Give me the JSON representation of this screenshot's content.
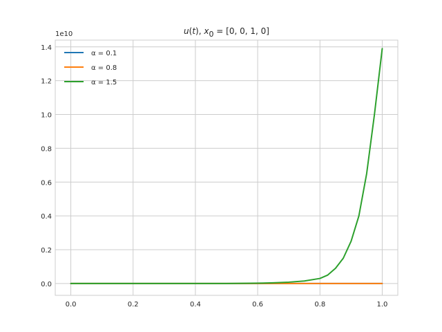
{
  "chart_data": {
    "type": "line",
    "title": {
      "func": "u",
      "arg": "t",
      "x0_symbol": "x",
      "x0_sub": "0",
      "x0_value": "[0, 0, 1, 0]"
    },
    "xlabel": "",
    "ylabel": "",
    "xlim": [
      -0.05,
      1.05
    ],
    "ylim": [
      -0.07,
      1.44
    ],
    "y_multiplier": "1e10",
    "x_ticks": [
      0.0,
      0.2,
      0.4,
      0.6,
      0.8,
      1.0
    ],
    "x_tick_labels": [
      "0.0",
      "0.2",
      "0.4",
      "0.6",
      "0.8",
      "1.0"
    ],
    "y_ticks": [
      0.0,
      0.2,
      0.4,
      0.6,
      0.8,
      1.0,
      1.2,
      1.4
    ],
    "y_tick_labels": [
      "0.0",
      "0.2",
      "0.4",
      "0.6",
      "0.8",
      "1.0",
      "1.2",
      "1.4"
    ],
    "grid": true,
    "legend_position": "top-left",
    "x": [
      0.0,
      0.1,
      0.2,
      0.3,
      0.4,
      0.5,
      0.55,
      0.6,
      0.65,
      0.7,
      0.75,
      0.8,
      0.825,
      0.85,
      0.875,
      0.9,
      0.925,
      0.95,
      0.975,
      1.0
    ],
    "series": [
      {
        "name": "α = 0.1",
        "color": "#1f77b4",
        "values": [
          0,
          0,
          0,
          0,
          0,
          0,
          0,
          0,
          0,
          0,
          0,
          0,
          0,
          0,
          0,
          0,
          0,
          0,
          0,
          0
        ]
      },
      {
        "name": "α = 0.8",
        "color": "#ff7f0e",
        "values": [
          0,
          0,
          0,
          0,
          0,
          0,
          0,
          0,
          0,
          0,
          0,
          0,
          0,
          0,
          0,
          0,
          0,
          0,
          0,
          0
        ]
      },
      {
        "name": "α = 1.5",
        "color": "#2ca02c",
        "values": [
          0,
          0,
          0,
          0,
          0,
          0,
          0.001,
          0.002,
          0.004,
          0.008,
          0.015,
          0.03,
          0.05,
          0.09,
          0.15,
          0.25,
          0.4,
          0.65,
          1.0,
          1.39
        ]
      }
    ]
  }
}
